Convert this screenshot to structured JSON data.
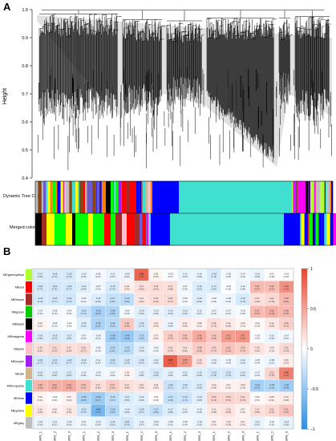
{
  "panel_a": {
    "label": "A",
    "ylabel": "Height",
    "yticks": [
      "1.0",
      "0.9",
      "0.8",
      "0.7",
      "0.6",
      "0.5",
      "0.4"
    ],
    "bars": [
      "Dynamic Tree Cut",
      "Merged colors"
    ]
  },
  "panel_b": {
    "label": "B"
  },
  "chart_data": [
    {
      "type": "dendrogram",
      "ylabel": "Height",
      "ylim": [
        0.4,
        1.0
      ],
      "yticks": [
        1.0,
        0.9,
        0.8,
        0.7,
        0.6,
        0.5,
        0.4
      ],
      "color_bars": [
        "Dynamic Tree Cut",
        "Merged colors"
      ]
    },
    {
      "type": "heatmap",
      "rows": [
        "MEgreenyellow",
        "MEred",
        "MEbrown",
        "MEgreen",
        "MEblack",
        "MEmagenta",
        "MEpink",
        "MEpurple",
        "MEtan",
        "MEturquoise",
        "MEblue",
        "MEyellow",
        "MEgrey"
      ],
      "row_colors": [
        "#adff2f",
        "#ff0000",
        "#a52a2a",
        "#00cc00",
        "#000000",
        "#ff00ff",
        "#ffc0cb",
        "#a020f0",
        "#d2b48c",
        "#40e0d0",
        "#0000ff",
        "#ffff00",
        "#bebebe"
      ],
      "columns": [
        "SRS_1",
        "SRS_2",
        "SRS_3",
        "SRS_1",
        "SRS_2",
        "SRS_3",
        "SRS_1",
        "SRS_2",
        "SRS_3",
        "SRS_1",
        "SRS_2",
        "SRS_3",
        "SRS_1",
        "SRS_2",
        "SRS_3",
        "SRS_1",
        "SRS_2",
        "SRS_3"
      ],
      "values": [
        [
          -0.17,
          -0.18,
          -0.19,
          -0.1,
          -0.06,
          -0.11,
          -0.09,
          0.82,
          0.06,
          -0.03,
          -0.11,
          -0.1,
          -0.18,
          -0.05,
          -0.07,
          -0.1,
          0.02,
          -0.01
        ],
        [
          -0.2,
          -0.21,
          -0.2,
          -0.15,
          -0.07,
          -0.19,
          0.09,
          0.17,
          0.19,
          0.17,
          -0.07,
          -0.16,
          -0.17,
          -0.02,
          -0.1,
          0.37,
          0.36,
          0.59
        ],
        [
          -0.19,
          -0.2,
          -0.22,
          -0.08,
          -0.16,
          -0.27,
          -0.3,
          0.14,
          0.19,
          0.2,
          -0.05,
          -0.15,
          -0.06,
          -0.08,
          -0.19,
          0.17,
          0.21,
          0.38
        ],
        [
          -0.07,
          -0.06,
          -0.04,
          -0.26,
          -0.42,
          -0.38,
          -0.05,
          -0.14,
          -0.1,
          -0.14,
          -0.14,
          -0.11,
          -0.07,
          -0.07,
          -0.04,
          0.37,
          0.42,
          0.38
        ],
        [
          0.06,
          -0.05,
          -0.02,
          -0.15,
          -0.39,
          -0.33,
          0.3,
          -0.18,
          0.1,
          -0.1,
          0.1,
          0.08,
          0.18,
          0.12,
          0.06,
          0.04,
          0.12,
          0.25
        ],
        [
          -0.16,
          -0.18,
          -0.17,
          -0.07,
          -0.08,
          -0.45,
          -0.48,
          -0.32,
          0.07,
          0.26,
          0.3,
          0.45,
          0.3,
          0.52,
          0.57,
          -0.03,
          -0.1,
          -0.07
        ],
        [
          0.16,
          0.21,
          0.17,
          0.2,
          -0.06,
          -0.33,
          -0.31,
          -0.14,
          -0.06,
          0.19,
          0.16,
          0.28,
          0.23,
          0.32,
          0.26,
          0.15,
          0.09,
          0.21
        ],
        [
          -0.2,
          -0.21,
          -0.2,
          -0.16,
          -0.11,
          -0.24,
          -0.19,
          -0.18,
          -0.12,
          0.86,
          0.55,
          0.15,
          -0.1,
          -0.06,
          -0.12,
          -0.05,
          -0.08,
          0.09
        ],
        [
          -0.16,
          -0.15,
          -0.17,
          -0.1,
          -0.08,
          -0.07,
          0.06,
          -0.12,
          -0.18,
          -0.12,
          -0.12,
          -0.15,
          -0.19,
          -0.19,
          -0.14,
          -0.07,
          0.22,
          0.68
        ],
        [
          0.38,
          0.42,
          0.45,
          0.33,
          0.17,
          0.27,
          0.17,
          0.14,
          0.1,
          -0.25,
          -0.2,
          -0.17,
          0.1,
          0.07,
          0.09,
          -0.42,
          -0.36,
          -0.45
        ],
        [
          0.06,
          -0.02,
          0.07,
          -0.38,
          -0.46,
          -0.29,
          -0.17,
          -0.13,
          0.02,
          -0.27,
          -0.24,
          -0.14,
          0.23,
          0.23,
          0.21,
          0.03,
          0.08,
          0.1
        ],
        [
          0.13,
          0.08,
          0.12,
          -0.22,
          -0.63,
          -0.35,
          -0.14,
          -0.2,
          -0.27,
          -0.17,
          -0.11,
          -0.1,
          0.12,
          0.15,
          0.07,
          0.17,
          0.21,
          0.31
        ],
        [
          -0.1,
          -0.11,
          -0.1,
          -0.07,
          -0.1,
          -0.16,
          -0.21,
          -0.11,
          -0.09,
          -0.08,
          -0.05,
          -0.1,
          0.07,
          0.1,
          0.07,
          -0.11,
          -0.04,
          -0.12
        ]
      ],
      "colorbar": {
        "min": -1,
        "max": 1,
        "ticks": [
          1,
          0.5,
          0,
          -0.5,
          -1
        ],
        "tick_labels": [
          "1",
          "0.5",
          "0",
          "−0.5",
          "−1"
        ],
        "low_color": "#2a8fe6",
        "mid_color": "#ffffff",
        "high_color": "#e8452c"
      }
    }
  ]
}
